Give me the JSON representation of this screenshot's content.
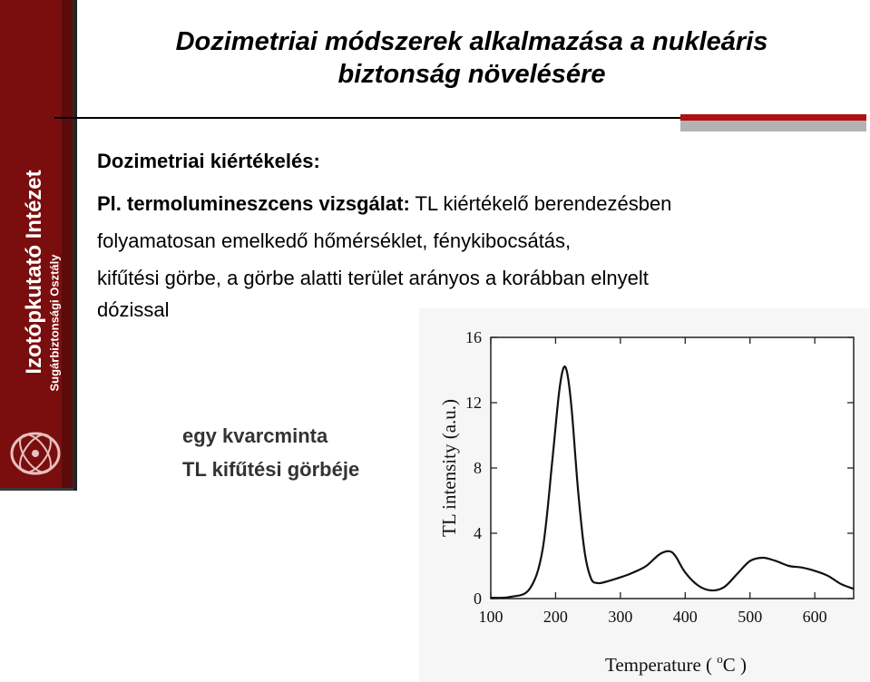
{
  "sidebar": {
    "institute": "Izotópkutató Intézet",
    "department": "Sugárbiztonsági Osztály"
  },
  "title": {
    "line1": "Dozimetriai módszerek alkalmazása a nukleáris",
    "line2": "biztonság növelésére"
  },
  "section_heading": "Dozimetriai kiértékelés:",
  "body": {
    "prefix_bold": "Pl. termolumineszcens vizsgálat:",
    "line1_rest": " TL kiértékelő berendezésben",
    "line2": "folyamatosan emelkedő hőmérséklet, fénykibocsátás,",
    "line3": "kifűtési görbe, a görbe alatti terület arányos a korábban elnyelt",
    "line4": "dózissal"
  },
  "caption": {
    "line1": "egy kvarcminta",
    "line2": "TL kifűtési görbéje"
  },
  "chart_data": {
    "type": "line",
    "xlabel_prefix": "Temperature ( ",
    "xlabel_unit": "C )",
    "xlabel_degree": "o",
    "ylabel": "TL intensity (a.u.)",
    "xlim": [
      100,
      660
    ],
    "ylim": [
      0,
      16
    ],
    "xticks": [
      100,
      200,
      300,
      400,
      500,
      600
    ],
    "yticks": [
      0,
      4,
      8,
      12,
      16
    ],
    "x": [
      100,
      130,
      160,
      180,
      195,
      205,
      212,
      218,
      225,
      235,
      245,
      255,
      265,
      275,
      300,
      320,
      340,
      360,
      375,
      385,
      400,
      420,
      440,
      460,
      480,
      500,
      520,
      540,
      560,
      580,
      600,
      620,
      640,
      660
    ],
    "y": [
      0.05,
      0.1,
      0.6,
      3.0,
      8.5,
      12.5,
      14.1,
      13.8,
      11.5,
      6.5,
      2.8,
      1.2,
      0.95,
      1.0,
      1.3,
      1.6,
      2.0,
      2.7,
      2.9,
      2.6,
      1.6,
      0.8,
      0.5,
      0.7,
      1.5,
      2.3,
      2.5,
      2.3,
      2.0,
      1.9,
      1.7,
      1.4,
      0.9,
      0.6
    ]
  }
}
